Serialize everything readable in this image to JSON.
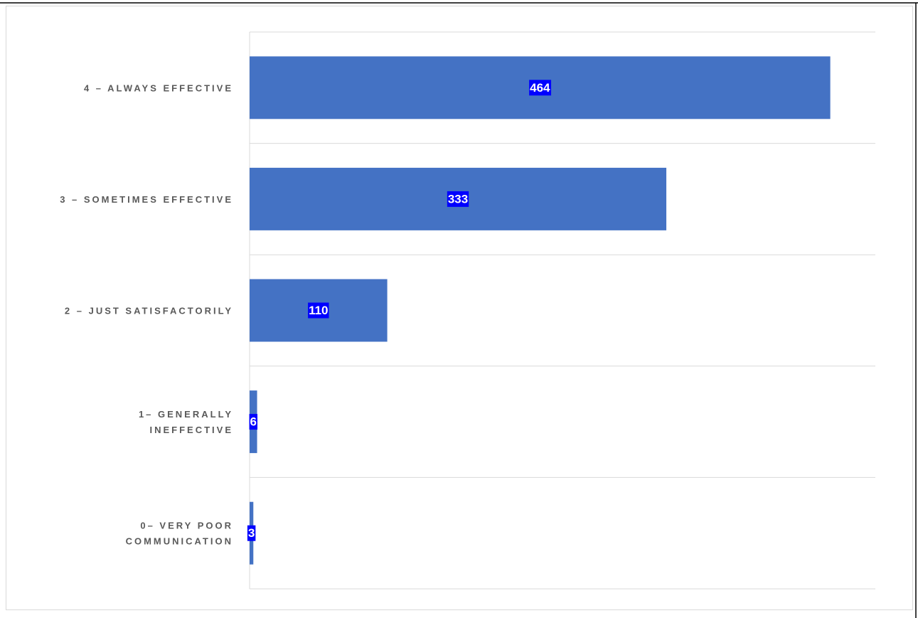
{
  "chart_data": {
    "type": "bar",
    "orientation": "horizontal",
    "categories": [
      "4 – ALWAYS EFFECTIVE",
      "3 – SOMETIMES EFFECTIVE",
      "2 – JUST SATISFACTORILY",
      "1– GENERALLY INEFFECTIVE",
      "0– VERY POOR COMMUNICATION"
    ],
    "values": [
      464,
      333,
      110,
      6,
      3
    ],
    "color": "#4472c4",
    "xlim": [
      0,
      500
    ],
    "grid": true
  }
}
